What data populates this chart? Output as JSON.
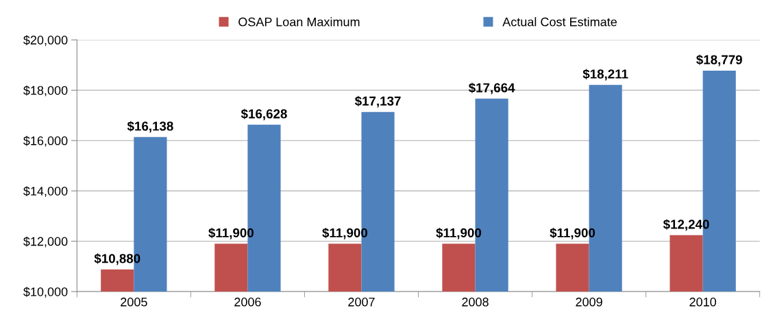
{
  "chart_data": {
    "type": "bar",
    "categories": [
      "2005",
      "2006",
      "2007",
      "2008",
      "2009",
      "2010"
    ],
    "series": [
      {
        "name": "OSAP Loan Maximum",
        "color": "#c0504d",
        "values": [
          10880,
          11900,
          11900,
          11900,
          11900,
          12240
        ],
        "value_labels": [
          "$10,880",
          "$11,900",
          "$11,900",
          "$11,900",
          "$11,900",
          "$12,240"
        ]
      },
      {
        "name": "Actual Cost Estimate",
        "color": "#4f81bd",
        "values": [
          16138,
          16628,
          17137,
          17664,
          18211,
          18779
        ],
        "value_labels": [
          "$16,138",
          "$16,628",
          "$17,137",
          "$17,664",
          "$18,211",
          "$18,779"
        ]
      }
    ],
    "ylim": [
      10000,
      20000
    ],
    "yticks": [
      {
        "value": 10000,
        "label": "$10,000"
      },
      {
        "value": 12000,
        "label": "$12,000"
      },
      {
        "value": 14000,
        "label": "$14,000"
      },
      {
        "value": 16000,
        "label": "$16,000"
      },
      {
        "value": 18000,
        "label": "$18,000"
      },
      {
        "value": 20000,
        "label": "$20,000"
      }
    ],
    "grid": "y",
    "legend": "top"
  }
}
